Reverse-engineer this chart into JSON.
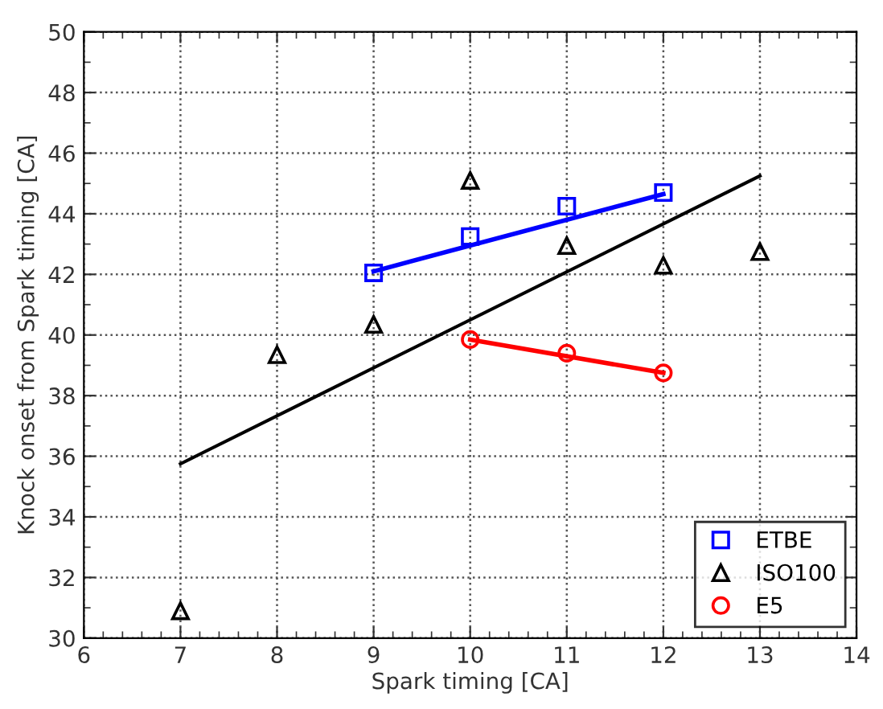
{
  "chart_data": {
    "type": "scatter",
    "xlabel": "Spark timing [CA]",
    "ylabel": "Knock onset from Spark timing [CA]",
    "xlim": [
      6,
      14
    ],
    "xticks": [
      6,
      7,
      8,
      9,
      10,
      11,
      12,
      13,
      14
    ],
    "ylim": [
      30,
      50
    ],
    "yticks": [
      30,
      32,
      34,
      36,
      38,
      40,
      42,
      44,
      46,
      48,
      50
    ],
    "grid": true,
    "legend": "bottom right",
    "series": [
      {
        "name": "ETBE",
        "color": "#0000ff",
        "marker": "square",
        "x": [
          9,
          10,
          11,
          12
        ],
        "values": [
          42.05,
          43.25,
          44.25,
          44.7
        ]
      },
      {
        "name": "ISO100",
        "color": "#000000",
        "marker": "triangle",
        "x": [
          7,
          8,
          9,
          10,
          11,
          12,
          13
        ],
        "values": [
          30.9,
          39.35,
          40.35,
          45.1,
          42.95,
          42.3,
          42.75
        ]
      },
      {
        "name": "E5",
        "color": "#ff0000",
        "marker": "circle",
        "x": [
          10,
          11,
          12
        ],
        "values": [
          39.85,
          39.4,
          38.75
        ]
      },
      {
        "type": "line",
        "color": "#0000ff",
        "marker": "none",
        "x": [
          9,
          12
        ],
        "values": [
          42.1,
          44.65
        ]
      },
      {
        "type": "line",
        "color": "#000000",
        "marker": "none",
        "x": [
          7,
          13
        ],
        "values": [
          35.75,
          45.25
        ]
      },
      {
        "type": "line",
        "color": "#ff0000",
        "marker": "none",
        "x": [
          10,
          12
        ],
        "values": [
          39.85,
          38.75
        ]
      }
    ]
  }
}
